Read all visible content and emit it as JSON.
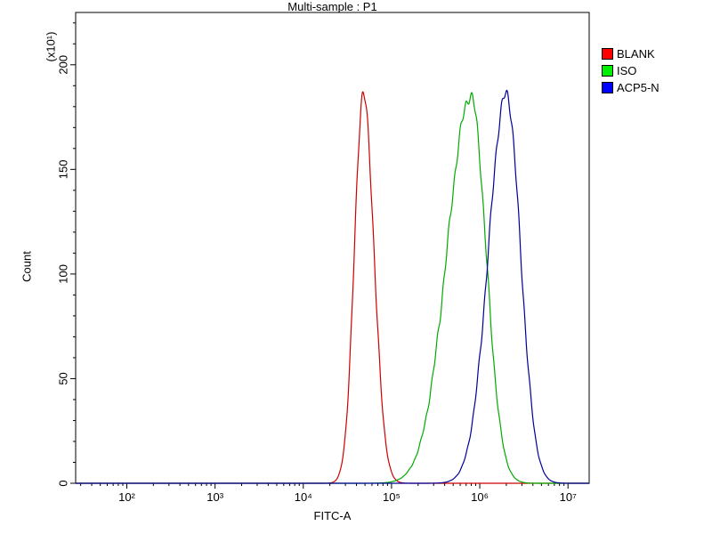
{
  "chart_data": {
    "type": "line",
    "subtype": "flow-cytometry-histogram",
    "title": "Multi-sample : P1",
    "xlabel": "FITC-A",
    "ylabel": "Count",
    "y_axis_multiplier": "(x10¹)",
    "x_scale": "log10",
    "xlim_log10": [
      1.42,
      7.24
    ],
    "ylim": [
      0,
      225
    ],
    "x_ticks_log10": [
      2,
      3,
      4,
      5,
      6,
      7
    ],
    "x_tick_labels": [
      "10²",
      "10³",
      "10⁴",
      "10⁵",
      "10⁶",
      "10⁷"
    ],
    "y_ticks": [
      0,
      50,
      100,
      150,
      200
    ],
    "y_tick_labels": [
      "0",
      "50",
      "100",
      "150",
      "200"
    ],
    "y_minor_step": 10,
    "grid": false,
    "legend_position": "top-right",
    "axis_color": "#000000",
    "series": [
      {
        "name": "BLANK",
        "curve_color": "#cc0000",
        "legend_color": "#ff0000",
        "peak_log10": 4.68,
        "peak_count": 186,
        "sigma_left": 0.1,
        "sigma_right": 0.12
      },
      {
        "name": "ISO",
        "curve_color": "#00aa00",
        "legend_color": "#00ee00",
        "peak_log10": 5.9,
        "peak_count": 185,
        "sigma_left": 0.27,
        "sigma_right": 0.17
      },
      {
        "name": "ACP5-N",
        "curve_color": "#000099",
        "legend_color": "#0000ff",
        "peak_log10": 6.3,
        "peak_count": 186,
        "sigma_left": 0.2,
        "sigma_right": 0.16
      }
    ]
  }
}
